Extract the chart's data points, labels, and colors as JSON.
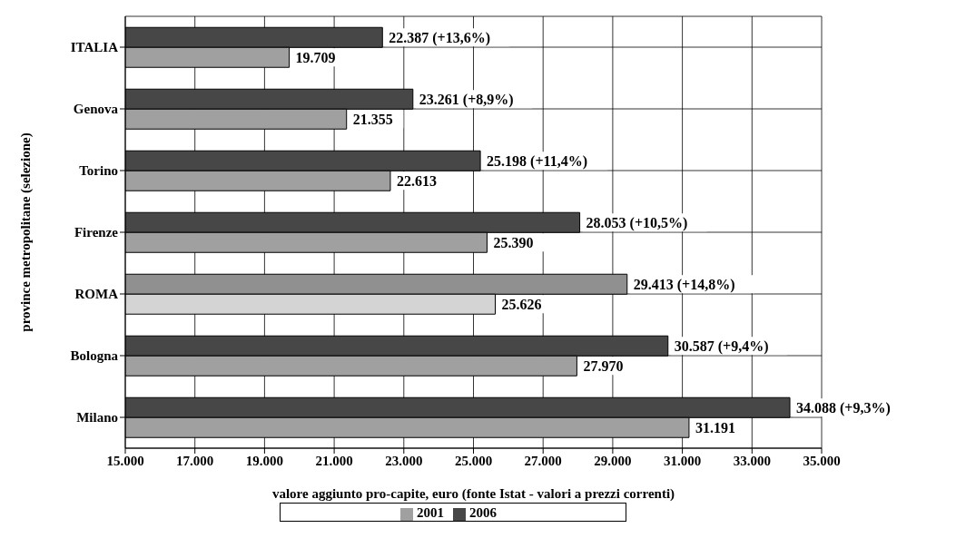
{
  "chart_data": {
    "type": "bar",
    "orientation": "horizontal",
    "categories": [
      "ITALIA",
      "Genova",
      "Torino",
      "Firenze",
      "ROMA",
      "Bologna",
      "Milano"
    ],
    "series": [
      {
        "name": "2001",
        "color": "#a0a0a0",
        "colors": [
          "#a0a0a0",
          "#a0a0a0",
          "#a0a0a0",
          "#a0a0a0",
          "#d4d4d4",
          "#a0a0a0",
          "#a0a0a0"
        ],
        "values": [
          19709,
          21355,
          22613,
          25390,
          25626,
          27970,
          31191
        ],
        "value_labels": [
          "19.709",
          "21.355",
          "22.613",
          "25.390",
          "25.626",
          "27.970",
          "31.191"
        ]
      },
      {
        "name": "2006",
        "color": "#474747",
        "colors": [
          "#474747",
          "#474747",
          "#474747",
          "#474747",
          "#909090",
          "#474747",
          "#474747"
        ],
        "values": [
          22387,
          23261,
          25198,
          28053,
          29413,
          30587,
          34088
        ],
        "value_labels": [
          "22.387 (+13,6%)",
          "23.261 (+8,9%)",
          "25.198 (+11,4%)",
          "28.053 (+10,5%)",
          "29.413 (+14,8%)",
          "30.587 (+9,4%)",
          "34.088 (+9,3%)"
        ]
      }
    ],
    "xlim": [
      15000,
      35000
    ],
    "xticks": [
      {
        "value": 15000,
        "label": "15.000"
      },
      {
        "value": 17000,
        "label": "17.000"
      },
      {
        "value": 19000,
        "label": "19.000"
      },
      {
        "value": 21000,
        "label": "21.000"
      },
      {
        "value": 23000,
        "label": "23.000"
      },
      {
        "value": 25000,
        "label": "25.000"
      },
      {
        "value": 27000,
        "label": "27.000"
      },
      {
        "value": 29000,
        "label": "29.000"
      },
      {
        "value": 31000,
        "label": "31.000"
      },
      {
        "value": 33000,
        "label": "33.000"
      },
      {
        "value": 35000,
        "label": "35.000"
      }
    ],
    "xlabel": "valore aggiunto pro-capite, euro (fonte Istat - valori a prezzi correnti)",
    "ylabel": "province metropolitane (selezione)",
    "grid": true,
    "legend": "bottom"
  }
}
